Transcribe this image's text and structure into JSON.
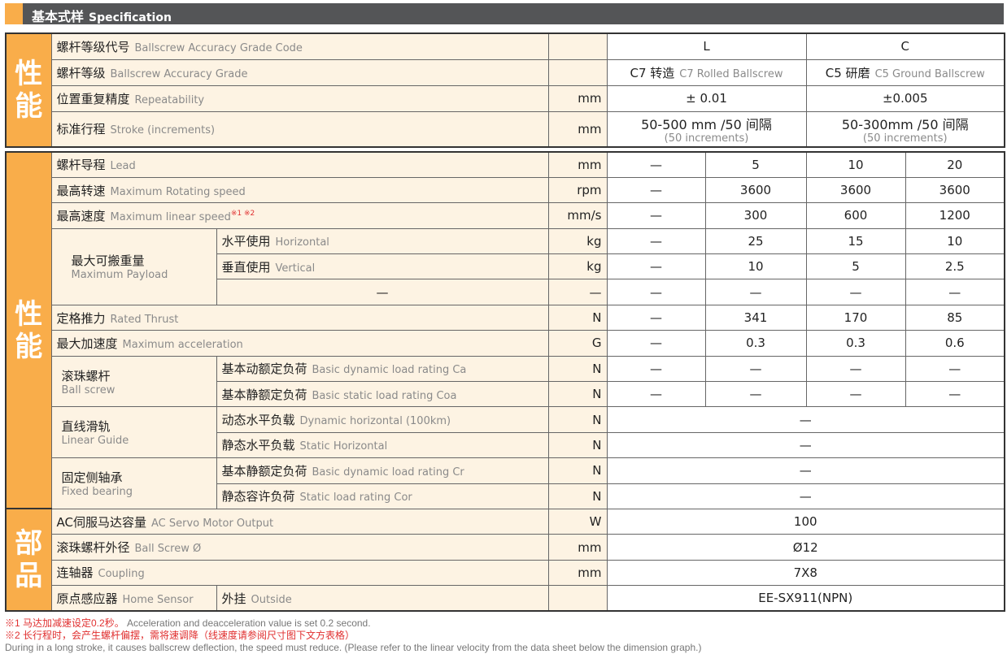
{
  "header": {
    "cn": "基本式样",
    "en": "Specification"
  },
  "sec1": {
    "side": "性能",
    "rows": [
      {
        "cn": "螺杆等级代号",
        "en": "Ballscrew Accuracy Grade Code",
        "unit": "",
        "L": "L",
        "C": "C"
      },
      {
        "cn": "螺杆等级",
        "en": "Ballscrew Accuracy Grade",
        "unit": "",
        "L": "C7 转造",
        "L_en": "C7 Rolled Ballscrew",
        "C": "C5 研磨",
        "C_en": "C5 Ground Ballscrew"
      },
      {
        "cn": "位置重复精度",
        "en": "Repeatability",
        "unit": "mm",
        "L": "± 0.01",
        "C": "±0.005"
      },
      {
        "cn": "标准行程",
        "en": "Stroke (increments)",
        "unit": "mm",
        "L": "50-500 mm /50 间隔",
        "L_en": "(50 increments)",
        "C": "50-300mm /50 间隔",
        "C_en": "(50 increments)"
      }
    ]
  },
  "sec2": {
    "side": "性能",
    "side2": "部品",
    "lead": {
      "cn": "螺杆导程",
      "en": "Lead",
      "unit": "mm",
      "v": [
        "—",
        "5",
        "10",
        "20"
      ]
    },
    "rot": {
      "cn": "最高转速",
      "en": "Maximum Rotating speed",
      "unit": "rpm",
      "v": [
        "—",
        "3600",
        "3600",
        "3600"
      ]
    },
    "lin": {
      "cn": "最高速度",
      "en": "Maximum linear speed",
      "note": "※1 ※2",
      "unit": "mm/s",
      "v": [
        "—",
        "300",
        "600",
        "1200"
      ]
    },
    "payload": {
      "cn": "最大可搬重量",
      "en": "Maximum Payload",
      "h": {
        "cn": "水平使用",
        "en": "Horizontal",
        "unit": "kg",
        "v": [
          "—",
          "25",
          "15",
          "10"
        ]
      },
      "vt": {
        "cn": "垂直使用",
        "en": "Vertical",
        "unit": "kg",
        "v": [
          "—",
          "10",
          "5",
          "2.5"
        ]
      },
      "x": {
        "cn": "—",
        "unit": "—",
        "v": [
          "—",
          "—",
          "—",
          "—"
        ]
      }
    },
    "thrust": {
      "cn": "定格推力",
      "en": "Rated Thrust",
      "unit": "N",
      "v": [
        "—",
        "341",
        "170",
        "85"
      ]
    },
    "acc": {
      "cn": "最大加速度",
      "en": "Maximum acceleration",
      "unit": "G",
      "v": [
        "—",
        "0.3",
        "0.3",
        "0.6"
      ]
    },
    "bs": {
      "cn": "滚珠螺杆",
      "en": "Ball screw",
      "d": {
        "cn": "基本动额定负荷",
        "en": "Basic dynamic load rating Ca",
        "unit": "N",
        "v": [
          "—",
          "—",
          "—",
          "—"
        ]
      },
      "s": {
        "cn": "基本静额定负荷",
        "en": "Basic static load rating Coa",
        "unit": "N",
        "v": [
          "—",
          "—",
          "—",
          "—"
        ]
      }
    },
    "lg": {
      "cn": "直线滑轨",
      "en": "Linear Guide",
      "d": {
        "cn": "动态水平负载",
        "en": "Dynamic horizontal (100km)",
        "unit": "N",
        "v": "—"
      },
      "s": {
        "cn": "静态水平负载",
        "en": "Static Horizontal",
        "unit": "N",
        "v": "—"
      }
    },
    "fb": {
      "cn": "固定侧轴承",
      "en": "Fixed bearing",
      "d": {
        "cn": "基本静额定负荷",
        "en": "Basic dynamic load rating Cr",
        "unit": "N",
        "v": "—"
      },
      "s": {
        "cn": "静态容许负荷",
        "en": "Static load rating Cor",
        "unit": "N",
        "v": "—"
      }
    },
    "motor": {
      "cn": "AC伺服马达容量",
      "en": "AC Servo Motor Output",
      "unit": "W",
      "v": "100"
    },
    "bsd": {
      "cn": "滚珠螺杆外径",
      "en": "Ball Screw Ø",
      "unit": "mm",
      "v": "Ø12"
    },
    "cp": {
      "cn": "连轴器",
      "en": "Coupling",
      "unit": "mm",
      "v": "7X8"
    },
    "hs": {
      "cn": "原点感应器",
      "en": "Home Sensor",
      "sub": "外挂",
      "sub_en": "Outside",
      "unit": "",
      "v": "EE-SX911(NPN)"
    }
  },
  "notes": {
    "n1_cn": "※1 马达加减速设定0.2秒。",
    "n1_en": "Acceleration and deacceleration value is set 0.2 second.",
    "n2_cn": "※2 长行程时，会产生螺杆偏摆，需将速调降（线速度请参阅尺寸图下文方表格）",
    "n2_en": "During in a long stroke, it causes ballscrew deflection, the speed must reduce. (Please refer to the linear velocity from the data sheet below the dimension graph.)"
  },
  "colors": {
    "accent": "#f9ad4a",
    "header_bg": "#545557",
    "label_bg": "#fdf3e3",
    "note_red": "#e03030"
  }
}
